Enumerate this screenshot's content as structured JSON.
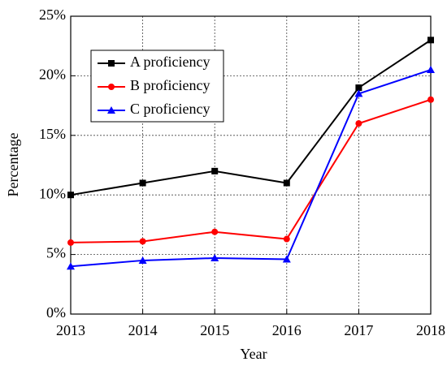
{
  "chart_data": {
    "type": "line",
    "x_label": "Year",
    "y_label": "Percentage",
    "x": [
      2013,
      2014,
      2015,
      2016,
      2017,
      2018
    ],
    "xlim": [
      2013,
      2018
    ],
    "xticks": [
      2013,
      2014,
      2015,
      2016,
      2017,
      2018
    ],
    "ylim": [
      0,
      25
    ],
    "yticks": [
      {
        "value": 0,
        "label": "0%"
      },
      {
        "value": 5,
        "label": "5%"
      },
      {
        "value": 10,
        "label": "10%"
      },
      {
        "value": 15,
        "label": "15%"
      },
      {
        "value": 20,
        "label": "20%"
      },
      {
        "value": 25,
        "label": "25%"
      }
    ],
    "grid": true,
    "legend": "upper left",
    "series": [
      {
        "name": "A proficiency",
        "color": "#000000",
        "marker": "square",
        "values": [
          10,
          11,
          12,
          11,
          19,
          23
        ]
      },
      {
        "name": "B proficiency",
        "color": "#ff0000",
        "marker": "circle",
        "values": [
          6,
          6.1,
          6.9,
          6.3,
          16,
          18
        ]
      },
      {
        "name": "C proficiency",
        "color": "#0000ff",
        "marker": "triangle",
        "values": [
          4,
          4.5,
          4.7,
          4.6,
          18.5,
          20.5
        ]
      }
    ]
  }
}
